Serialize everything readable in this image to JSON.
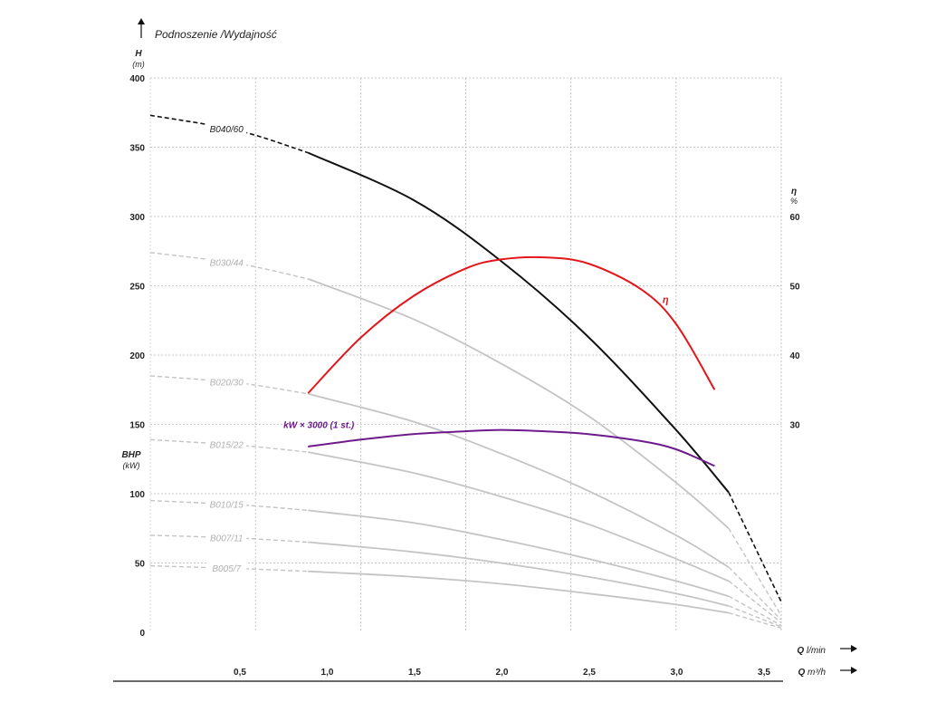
{
  "chart_data": {
    "type": "line",
    "title": "Podnoszenie /Wydajność",
    "left_axis": {
      "label": "H",
      "unit": "(m)",
      "ticks": [
        "0",
        "50",
        "100",
        "150",
        "200",
        "250",
        "300",
        "350",
        "400"
      ],
      "ylim": [
        0,
        400
      ]
    },
    "power_axis": {
      "label": "BHP",
      "unit": "(kW)"
    },
    "right_axis": {
      "label": "η",
      "unit": "%",
      "ticks": [
        "30",
        "40",
        "50",
        "60"
      ],
      "ylim": [
        0,
        80
      ]
    },
    "x_axis_top": {
      "label": "Q",
      "unit": "l/min",
      "xlim": [
        0,
        3.6
      ]
    },
    "x_axis_bottom": {
      "label": "Q",
      "unit": "m³/h",
      "ticks": [
        "0,5",
        "1,0",
        "1,5",
        "2,0",
        "2,5",
        "3,0",
        "3,5"
      ],
      "tick_values": [
        0.5,
        1.0,
        1.5,
        2.0,
        2.5,
        3.0,
        3.5
      ]
    },
    "colors": {
      "main": "#111111",
      "secondary": "#c4c4c4",
      "efficiency": "#e3161b",
      "power": "#6d1b8c",
      "grid": "#b9b9b9"
    },
    "series": [
      {
        "name": "B040/60",
        "style": "main",
        "solid_range": [
          0.9,
          3.3
        ],
        "x": [
          0,
          0.5,
          0.9,
          1.5,
          2.0,
          2.5,
          3.0,
          3.3,
          3.6
        ],
        "y": [
          373,
          362,
          346,
          312,
          268,
          213,
          146,
          101,
          22
        ]
      },
      {
        "name": "B030/44",
        "style": "secondary",
        "solid_range": [
          0.9,
          3.3
        ],
        "x": [
          0,
          0.5,
          0.9,
          1.5,
          2.0,
          2.5,
          3.0,
          3.3,
          3.6
        ],
        "y": [
          274,
          266,
          255,
          226,
          194,
          156,
          108,
          75,
          12
        ]
      },
      {
        "name": "B020/30",
        "style": "secondary",
        "solid_range": [
          0.9,
          3.3
        ],
        "x": [
          0,
          0.5,
          0.9,
          1.5,
          2.0,
          2.5,
          3.0,
          3.3,
          3.6
        ],
        "y": [
          185,
          180,
          172,
          152,
          129,
          102,
          70,
          47,
          9
        ]
      },
      {
        "name": "B015/22",
        "style": "secondary",
        "solid_range": [
          0.9,
          3.3
        ],
        "x": [
          0,
          0.5,
          0.9,
          1.5,
          2.0,
          2.5,
          3.0,
          3.3,
          3.6
        ],
        "y": [
          139,
          135,
          130,
          115,
          98,
          78,
          53,
          37,
          7
        ]
      },
      {
        "name": "B010/15",
        "style": "secondary",
        "solid_range": [
          0.9,
          3.3
        ],
        "x": [
          0,
          0.5,
          0.9,
          1.5,
          2.0,
          2.5,
          3.0,
          3.3,
          3.6
        ],
        "y": [
          95,
          92,
          88,
          79,
          67,
          53,
          37,
          26,
          5
        ]
      },
      {
        "name": "B007/11",
        "style": "secondary",
        "solid_range": [
          0.9,
          3.3
        ],
        "x": [
          0,
          0.5,
          0.9,
          1.5,
          2.0,
          2.5,
          3.0,
          3.3,
          3.6
        ],
        "y": [
          70,
          68,
          65,
          58,
          50,
          40,
          28,
          19,
          4
        ]
      },
      {
        "name": "B005/7",
        "style": "secondary",
        "solid_range": [
          0.9,
          3.3
        ],
        "x": [
          0,
          0.5,
          0.9,
          1.5,
          2.0,
          2.5,
          3.0,
          3.3,
          3.6
        ],
        "y": [
          48,
          46,
          44,
          40,
          35,
          28,
          20,
          14,
          3
        ]
      },
      {
        "name": "η",
        "style": "efficiency",
        "axis": "right",
        "x": [
          0.9,
          1.2,
          1.5,
          1.8,
          2.0,
          2.25,
          2.5,
          2.8,
          3.0,
          3.22
        ],
        "y": [
          34.5,
          42.5,
          48.5,
          52.5,
          53.8,
          54.1,
          53.2,
          49.5,
          44.5,
          35.0
        ]
      },
      {
        "name": "kW × 3000 (1 st.)",
        "style": "power",
        "axis": "left",
        "x": [
          0.9,
          1.2,
          1.5,
          1.8,
          2.0,
          2.25,
          2.5,
          2.8,
          3.0,
          3.22
        ],
        "y": [
          134,
          139,
          143,
          145,
          146,
          145,
          143,
          138,
          132,
          120
        ]
      }
    ]
  }
}
